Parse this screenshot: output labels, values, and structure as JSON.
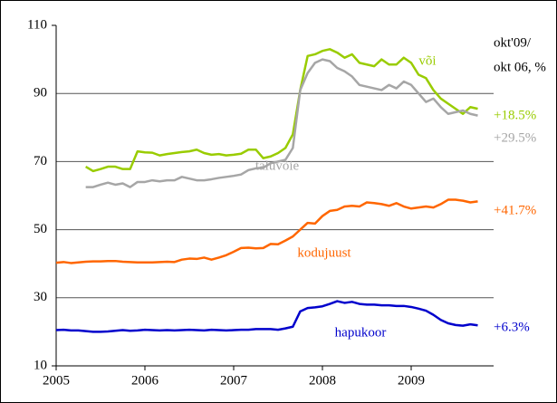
{
  "chart_data": {
    "type": "line",
    "categories": [
      "2005",
      null,
      null,
      null,
      null,
      null,
      null,
      null,
      null,
      null,
      null,
      null,
      "2006",
      null,
      null,
      null,
      null,
      null,
      null,
      null,
      null,
      null,
      null,
      null,
      "2007",
      null,
      null,
      null,
      null,
      null,
      null,
      null,
      null,
      null,
      null,
      null,
      "2008",
      null,
      null,
      null,
      null,
      null,
      null,
      null,
      null,
      null,
      null,
      null,
      "2009",
      null,
      null,
      null,
      null,
      null,
      null,
      null,
      null,
      null
    ],
    "ylim": [
      10,
      110
    ],
    "yticks": [
      10,
      30,
      50,
      70,
      90,
      110
    ],
    "grid": true,
    "side_header": [
      "okt'09/",
      "okt 06, %"
    ],
    "series": [
      {
        "name": "või",
        "color": "#99cc00",
        "change": "+18.5%",
        "values": [
          null,
          null,
          null,
          null,
          68.5,
          67.2,
          67.8,
          68.5,
          68.5,
          67.8,
          67.8,
          73.0,
          72.7,
          72.6,
          71.8,
          72.2,
          72.5,
          72.8,
          73.0,
          73.5,
          72.5,
          72.0,
          72.2,
          71.8,
          72.0,
          72.3,
          73.5,
          73.5,
          71.0,
          71.5,
          72.5,
          74.0,
          78.0,
          91.0,
          101.0,
          101.5,
          102.5,
          103.0,
          102.0,
          100.5,
          101.5,
          99.0,
          98.5,
          98.0,
          100.0,
          98.5,
          98.5,
          100.5,
          99.0,
          95.5,
          94.5,
          91.0,
          88.5,
          87.0,
          85.5,
          84.0,
          86.0,
          85.5
        ]
      },
      {
        "name": "taluvõie",
        "color": "#a6a6a6",
        "change": "+29.5%",
        "values": [
          null,
          null,
          null,
          null,
          62.5,
          62.5,
          63.2,
          63.8,
          63.2,
          63.6,
          62.5,
          64.0,
          64.0,
          64.5,
          64.2,
          64.5,
          64.5,
          65.5,
          65.0,
          64.5,
          64.5,
          64.8,
          65.2,
          65.5,
          65.8,
          66.2,
          67.5,
          68.0,
          68.2,
          69.5,
          70.0,
          70.5,
          74.0,
          91.0,
          96.0,
          99.0,
          100.0,
          99.5,
          97.5,
          96.5,
          95.0,
          92.5,
          92.0,
          91.5,
          91.0,
          92.5,
          91.5,
          93.5,
          92.5,
          90.0,
          87.5,
          88.5,
          86.0,
          84.0,
          84.5,
          85.0,
          84.0,
          83.5
        ]
      },
      {
        "name": "kodujuust",
        "color": "#ff6600",
        "change": "+41.7%",
        "values": [
          40.3,
          40.5,
          40.2,
          40.4,
          40.6,
          40.7,
          40.7,
          40.8,
          40.8,
          40.6,
          40.5,
          40.4,
          40.4,
          40.4,
          40.5,
          40.6,
          40.5,
          41.2,
          41.5,
          41.4,
          41.8,
          41.2,
          41.8,
          42.5,
          43.5,
          44.6,
          44.7,
          44.5,
          44.6,
          45.8,
          45.7,
          46.8,
          48.0,
          50.0,
          52.0,
          51.8,
          54.0,
          55.5,
          55.8,
          56.8,
          57.0,
          56.8,
          58.0,
          57.8,
          57.5,
          57.0,
          57.8,
          56.8,
          56.2,
          56.5,
          56.8,
          56.5,
          57.5,
          58.8,
          58.8,
          58.5,
          58.0,
          58.3
        ]
      },
      {
        "name": "hapukoor",
        "color": "#0000cc",
        "change": "+6.3%",
        "values": [
          20.5,
          20.6,
          20.4,
          20.4,
          20.2,
          20.0,
          20.0,
          20.1,
          20.3,
          20.5,
          20.3,
          20.4,
          20.6,
          20.5,
          20.4,
          20.5,
          20.4,
          20.5,
          20.6,
          20.5,
          20.4,
          20.6,
          20.5,
          20.4,
          20.5,
          20.6,
          20.6,
          20.8,
          20.8,
          20.8,
          20.6,
          21.0,
          21.5,
          26.0,
          27.0,
          27.2,
          27.5,
          28.2,
          29.0,
          28.5,
          28.8,
          28.2,
          28.0,
          28.0,
          27.8,
          27.8,
          27.6,
          27.6,
          27.3,
          26.8,
          26.2,
          25.0,
          23.5,
          22.5,
          22.0,
          21.8,
          22.2,
          21.9
        ]
      }
    ]
  }
}
